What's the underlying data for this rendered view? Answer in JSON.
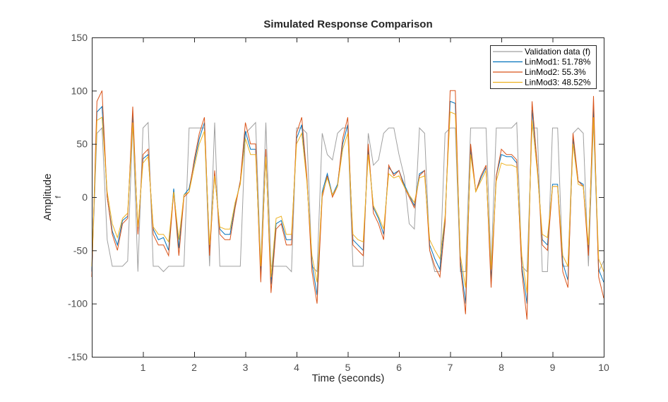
{
  "chart_data": {
    "type": "line",
    "title": "Simulated Response Comparison",
    "xlabel": "Time (seconds)",
    "ylabel": "Amplitude",
    "ylabel_sub": "f",
    "xlim": [
      0,
      10
    ],
    "ylim": [
      -150,
      150
    ],
    "xticks": [
      "1",
      "2",
      "3",
      "4",
      "5",
      "6",
      "7",
      "8",
      "9",
      "10"
    ],
    "xtick_values": [
      1,
      2,
      3,
      4,
      5,
      6,
      7,
      8,
      9,
      10
    ],
    "yticks": [
      "-150",
      "-100",
      "-50",
      "0",
      "50",
      "100",
      "150"
    ],
    "ytick_values": [
      -150,
      -100,
      -50,
      0,
      50,
      100,
      150
    ],
    "grid": false,
    "legend_position": "top-right",
    "x_step": 0.1,
    "series": [
      {
        "name": "Validation data (f)",
        "color": "#a0a0a0",
        "values": [
          -70,
          60,
          65,
          -40,
          -65,
          -65,
          -65,
          -60,
          70,
          -70,
          65,
          70,
          -65,
          -65,
          -70,
          -65,
          -65,
          -65,
          -65,
          65,
          65,
          65,
          65,
          -65,
          70,
          -65,
          -65,
          -65,
          -65,
          -65,
          60,
          65,
          70,
          -65,
          70,
          -65,
          -65,
          -65,
          -65,
          -70,
          65,
          65,
          60,
          -65,
          -70,
          60,
          40,
          35,
          60,
          65,
          65,
          -65,
          -65,
          -65,
          60,
          30,
          35,
          60,
          65,
          65,
          40,
          20,
          -25,
          -30,
          65,
          60,
          -50,
          -70,
          -70,
          60,
          65,
          65,
          -70,
          -70,
          65,
          65,
          65,
          65,
          -65,
          65,
          65,
          65,
          65,
          70,
          -65,
          -70,
          65,
          65,
          -70,
          -70,
          65,
          65,
          -65,
          -65,
          60,
          65,
          60,
          -65,
          70,
          -70,
          -60
        ]
      },
      {
        "name": "LinMod1: 51.78%",
        "color": "#0072bd",
        "values": [
          -70,
          80,
          85,
          0,
          -32,
          -45,
          -22,
          -18,
          78,
          -32,
          36,
          40,
          -30,
          -40,
          -38,
          -50,
          8,
          -48,
          2,
          8,
          32,
          55,
          70,
          -50,
          22,
          -30,
          -35,
          -35,
          -8,
          15,
          62,
          45,
          45,
          -72,
          40,
          -82,
          -25,
          -22,
          -40,
          -40,
          55,
          68,
          18,
          -62,
          -92,
          5,
          22,
          2,
          12,
          50,
          68,
          -40,
          -45,
          -50,
          45,
          -10,
          -20,
          -35,
          28,
          22,
          25,
          12,
          2,
          -8,
          22,
          25,
          -45,
          -58,
          -68,
          -20,
          90,
          88,
          -60,
          -100,
          45,
          5,
          18,
          28,
          -78,
          20,
          40,
          38,
          38,
          32,
          -65,
          -100,
          82,
          30,
          -40,
          -45,
          12,
          12,
          -62,
          -78,
          55,
          15,
          12,
          -50,
          85,
          -68,
          -80
        ]
      },
      {
        "name": "LinMod2: 55.3%",
        "color": "#d95319",
        "values": [
          -75,
          90,
          100,
          0,
          -35,
          -50,
          -25,
          -20,
          85,
          -35,
          40,
          45,
          -35,
          -45,
          -45,
          -55,
          5,
          -55,
          0,
          5,
          35,
          60,
          75,
          -55,
          25,
          -35,
          -40,
          -40,
          -10,
          15,
          70,
          50,
          50,
          -80,
          45,
          -90,
          -30,
          -25,
          -45,
          -45,
          60,
          75,
          20,
          -70,
          -100,
          0,
          20,
          0,
          10,
          55,
          75,
          -45,
          -50,
          -55,
          50,
          -15,
          -25,
          -40,
          30,
          20,
          25,
          10,
          0,
          -10,
          20,
          25,
          -50,
          -65,
          -75,
          -25,
          100,
          100,
          -65,
          -110,
          50,
          5,
          20,
          30,
          -85,
          20,
          45,
          40,
          40,
          35,
          -70,
          -115,
          90,
          30,
          -45,
          -50,
          10,
          10,
          -70,
          -85,
          60,
          15,
          10,
          -55,
          95,
          -75,
          -95
        ]
      },
      {
        "name": "LinMod3: 48.52%",
        "color": "#edb120",
        "values": [
          -65,
          72,
          75,
          5,
          -25,
          -38,
          -20,
          -15,
          70,
          -28,
          32,
          38,
          -28,
          -35,
          -35,
          -42,
          5,
          -40,
          2,
          5,
          28,
          50,
          62,
          -45,
          20,
          -28,
          -30,
          -30,
          -5,
          12,
          55,
          40,
          40,
          -65,
          38,
          -75,
          -20,
          -18,
          -35,
          -35,
          50,
          60,
          15,
          -55,
          -80,
          3,
          18,
          2,
          10,
          45,
          60,
          -35,
          -40,
          -42,
          40,
          -8,
          -18,
          -30,
          22,
          18,
          20,
          10,
          2,
          -5,
          18,
          20,
          -40,
          -50,
          -58,
          -18,
          80,
          78,
          -55,
          -85,
          40,
          5,
          15,
          25,
          -68,
          15,
          32,
          30,
          30,
          28,
          -55,
          -90,
          72,
          25,
          -35,
          -38,
          10,
          10,
          -55,
          -65,
          50,
          12,
          10,
          -45,
          75,
          -58,
          -70
        ]
      }
    ]
  }
}
